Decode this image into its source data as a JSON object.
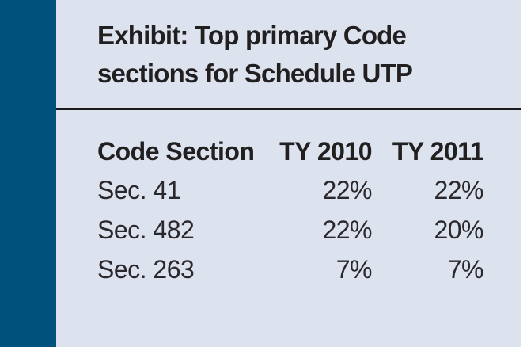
{
  "colors": {
    "accent": "#00527d",
    "panel_bg": "#dce2ee",
    "text": "#221f20",
    "text_body": "#2a282c",
    "rule": "#1b1b1e"
  },
  "title": {
    "line1": "Exhibit: Top primary Code",
    "line2": "sections for Schedule UTP"
  },
  "chart_data": {
    "type": "table",
    "title": "Exhibit: Top primary Code sections for Schedule UTP",
    "columns": [
      "Code Section",
      "TY 2010",
      "TY 2011"
    ],
    "rows": [
      [
        "Sec. 41",
        "22%",
        "22%"
      ],
      [
        "Sec. 482",
        "22%",
        "20%"
      ],
      [
        "Sec. 263",
        "7%",
        "7%"
      ]
    ]
  }
}
